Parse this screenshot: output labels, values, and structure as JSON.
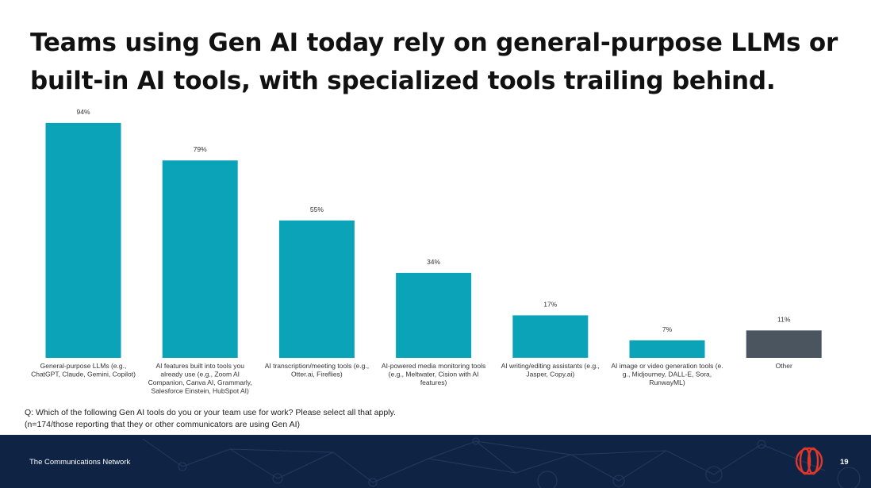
{
  "slide": {
    "title": "Teams using Gen AI today rely on general-purpose LLMs or built-in AI tools, with specialized tools trailing behind."
  },
  "chart_data": {
    "type": "bar",
    "title": "",
    "xlabel": "",
    "ylabel": "",
    "ylim": [
      0,
      100
    ],
    "grid": false,
    "legend": "none",
    "unit": "%",
    "categories": [
      "General-purpose LLMs (e.g., ChatGPT, Claude, Gemini, Copilot)",
      "AI features built into tools you already use (e.g., Zoom AI Companion, Canva AI, Grammarly, Salesforce Einstein, HubSpot AI)",
      "AI transcription/meeting tools (e.g., Otter.ai, Fireflies)",
      "AI-powered media monitoring tools (e.g., Meltwater, Cision with AI features)",
      "AI writing/editing assistants (e.g., Jasper, Copy.ai)",
      "AI image or video generation tools (e.g., Midjourney, DALL-E, Sora, RunwayML)",
      "Other"
    ],
    "category_label_lines": [
      [
        "General-purpose LLMs (e.g.,",
        "ChatGPT, Claude, Gemini, Copilot)"
      ],
      [
        "AI features built into tools you",
        "already use (e.g., Zoom AI",
        "Companion, Canva AI, Grammarly,",
        "Salesforce Einstein, HubSpot AI)"
      ],
      [
        "AI transcription/meeting tools (e.g.,",
        "Otter.ai, Fireflies)"
      ],
      [
        "AI-powered media monitoring tools",
        "(e.g., Meltwater, Cision with AI",
        "features)"
      ],
      [
        "AI writing/editing assistants (e.g.,",
        "Jasper, Copy.ai)"
      ],
      [
        "AI image or video generation tools (e.",
        "g., Midjourney, DALL-E, Sora,",
        "RunwayML)"
      ],
      [
        "Other"
      ]
    ],
    "values": [
      94,
      79,
      55,
      34,
      17,
      7,
      11
    ],
    "value_labels": [
      "94%",
      "79%",
      "55%",
      "34%",
      "17%",
      "7%",
      "11%"
    ],
    "colors": [
      "#0ba3b7",
      "#0ba3b7",
      "#0ba3b7",
      "#0ba3b7",
      "#0ba3b7",
      "#0ba3b7",
      "#4a5560"
    ]
  },
  "footnote": {
    "question": "Q: Which of the following Gen AI tools do you or your team use for work? Please select all that apply.",
    "base": "(n=174/those reporting that they or other communicators are using Gen AI)"
  },
  "footer": {
    "organization": "The Communications Network",
    "page_number": "19",
    "logo_icon": "communications-network-logo-icon",
    "background_color": "#0f2445",
    "logo_color": "#e0372b"
  }
}
